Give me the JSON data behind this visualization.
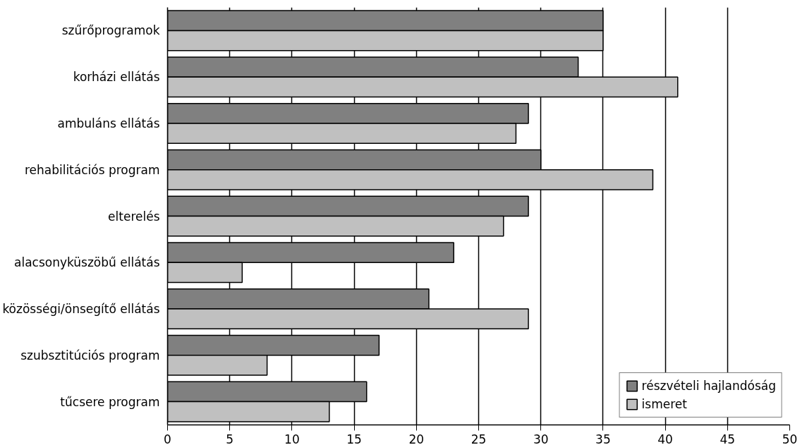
{
  "chart_data": {
    "type": "bar",
    "orientation": "horizontal",
    "categories": [
      "szűrőprogramok",
      "korházi ellátás",
      "ambuláns ellátás",
      "rehabilitációs program",
      "elterelés",
      "alacsonyküszöbű ellátás",
      "közösségi/önsegítő ellátás",
      "szubsztitúciós program",
      "tűcsere program"
    ],
    "series": [
      {
        "name": "részvételi hajlandóság",
        "color": "#808080",
        "values": [
          35,
          33,
          29,
          30,
          29,
          23,
          21,
          17,
          16
        ]
      },
      {
        "name": "ismeret",
        "color": "#c0c0c0",
        "values": [
          35,
          41,
          28,
          39,
          27,
          6,
          29,
          8,
          13
        ]
      }
    ],
    "xlim": [
      0,
      50
    ],
    "xticks": [
      0,
      5,
      10,
      15,
      20,
      25,
      30,
      35,
      40,
      45,
      50
    ],
    "grid": "x",
    "legend": "bottom right"
  }
}
